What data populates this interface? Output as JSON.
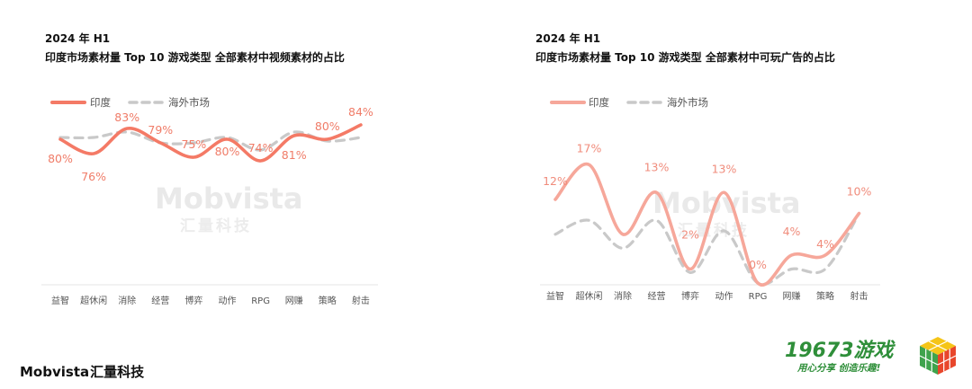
{
  "panels": [
    {
      "period": "2024 年 H1",
      "title": "印度市场素材量 Top 10 游戏类型  全部素材中视频素材的占比",
      "legend": {
        "india": "印度",
        "overseas": "海外市场"
      }
    },
    {
      "period": "2024 年 H1",
      "title": "印度市场素材量 Top 10 游戏类型  全部素材中可玩广告的占比",
      "legend": {
        "india": "印度",
        "overseas": "海外市场"
      }
    }
  ],
  "watermark": {
    "text": "Mobvista",
    "sub": "汇量科技"
  },
  "footer": {
    "brand_en": "Mobvista",
    "brand_cn": "汇量科技"
  },
  "logo2": {
    "name": "19673游戏",
    "slogan": "用心分享  创造乐趣!"
  },
  "colors": {
    "india_video": "#f47a66",
    "india_playable": "#f6a79a",
    "overseas": "#c9c9c9"
  },
  "chart_data": [
    {
      "type": "line",
      "categories": [
        "益智",
        "超休闲",
        "消除",
        "经营",
        "博弈",
        "动作",
        "RPG",
        "网赚",
        "策略",
        "射击"
      ],
      "series": [
        {
          "name": "印度",
          "values": [
            80,
            76,
            83,
            79,
            75,
            80,
            74,
            81,
            80,
            84
          ],
          "labels": [
            "80%",
            "76%",
            "83%",
            "79%",
            "75%",
            "80%",
            "74%",
            "81%",
            "80%",
            "84%"
          ]
        },
        {
          "name": "海外市场",
          "values": [
            80.5,
            80.5,
            82,
            79,
            79,
            80.5,
            77,
            82,
            79.5,
            80.5
          ]
        }
      ],
      "ylim": [
        40,
        100
      ]
    },
    {
      "type": "line",
      "categories": [
        "益智",
        "超休闲",
        "消除",
        "经营",
        "博弈",
        "动作",
        "RPG",
        "网赚",
        "策略",
        "射击"
      ],
      "series": [
        {
          "name": "印度",
          "values": [
            12,
            17,
            7,
            13,
            2,
            13,
            0,
            4,
            4,
            10
          ],
          "labels": [
            "12%",
            "17%",
            "",
            "13%",
            "2%",
            "13%",
            "0%",
            "4%",
            "4%",
            "10%"
          ]
        },
        {
          "name": "海外市场",
          "values": [
            7,
            9,
            5,
            9,
            1.5,
            7.5,
            0,
            2,
            2,
            10
          ]
        }
      ],
      "ylim": [
        0,
        20
      ]
    }
  ]
}
